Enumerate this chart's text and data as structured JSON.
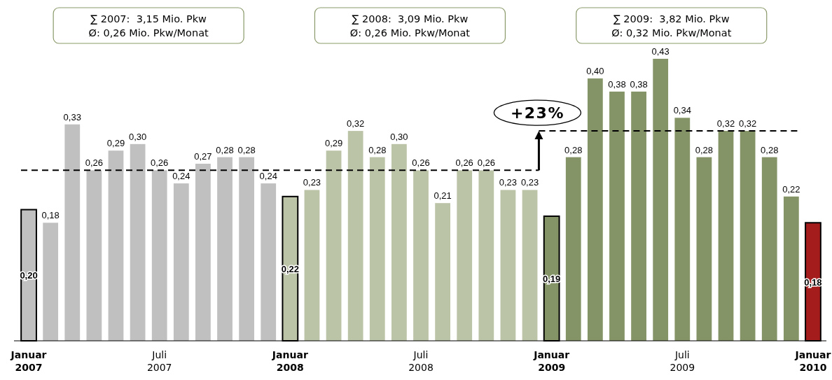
{
  "chart_data": {
    "type": "bar",
    "categories": [
      "Januar 2007",
      null,
      null,
      null,
      null,
      null,
      "Juli 2007",
      null,
      null,
      null,
      null,
      null,
      "Januar 2008",
      null,
      null,
      null,
      null,
      null,
      "Juli 2008",
      null,
      null,
      null,
      null,
      null,
      "Januar 2009",
      null,
      null,
      null,
      null,
      null,
      "Juli 2009",
      null,
      null,
      null,
      null,
      null,
      "Januar 2010"
    ],
    "values": [
      0.2,
      0.18,
      0.33,
      0.26,
      0.29,
      0.3,
      0.26,
      0.24,
      0.27,
      0.28,
      0.28,
      0.24,
      0.22,
      0.23,
      0.29,
      0.32,
      0.28,
      0.3,
      0.26,
      0.21,
      0.26,
      0.26,
      0.23,
      0.23,
      0.19,
      0.28,
      0.4,
      0.38,
      0.38,
      0.43,
      0.34,
      0.28,
      0.32,
      0.32,
      0.28,
      0.22,
      0.18
    ],
    "colors": [
      "#c0c0c0",
      "#c0c0c0",
      "#c0c0c0",
      "#c0c0c0",
      "#c0c0c0",
      "#c0c0c0",
      "#c0c0c0",
      "#c0c0c0",
      "#c0c0c0",
      "#c0c0c0",
      "#c0c0c0",
      "#c0c0c0",
      "#bcc4a8",
      "#bcc4a8",
      "#bcc4a8",
      "#bcc4a8",
      "#bcc4a8",
      "#bcc4a8",
      "#bcc4a8",
      "#bcc4a8",
      "#bcc4a8",
      "#bcc4a8",
      "#bcc4a8",
      "#bcc4a8",
      "#849466",
      "#849466",
      "#849466",
      "#849466",
      "#849466",
      "#849466",
      "#849466",
      "#849466",
      "#849466",
      "#849466",
      "#849466",
      "#849466",
      "#a51c1c"
    ],
    "value_labels": [
      "0,20",
      "0,18",
      "0,33",
      "0,26",
      "0,29",
      "0,30",
      "0,26",
      "0,24",
      "0,27",
      "0,28",
      "0,28",
      "0,24",
      "0,22",
      "0,23",
      "0,29",
      "0,32",
      "0,28",
      "0,30",
      "0,26",
      "0,21",
      "0,26",
      "0,26",
      "0,23",
      "0,23",
      "0,19",
      "0,28",
      "0,40",
      "0,38",
      "0,38",
      "0,43",
      "0,34",
      "0,28",
      "0,32",
      "0,32",
      "0,28",
      "0,22",
      "0,18"
    ],
    "ref_lines": [
      {
        "axis": "y",
        "value": 0.26,
        "line_style": "dashed"
      },
      {
        "axis": "y",
        "value": 0.32,
        "line_style": "dashed"
      }
    ],
    "annotations": [
      "∑ 2007:  3,15 Mio. Pkw\nØ: 0,26 Mio. Pkw/Monat",
      "∑ 2008:  3,09 Mio. Pkw\nØ: 0,26 Mio. Pkw/Monat",
      "∑ 2009:  3,82 Mio. Pkw\nØ: 0,32 Mio. Pkw/Monat",
      "+23%"
    ]
  }
}
